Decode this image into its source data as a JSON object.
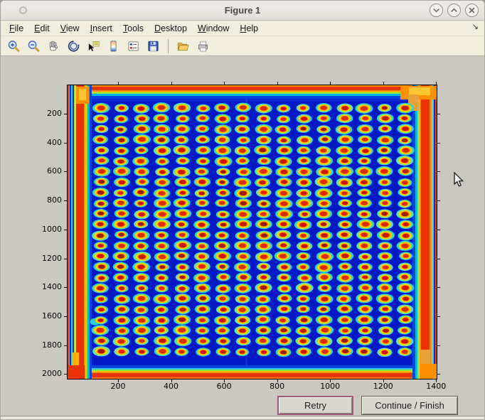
{
  "window": {
    "title": "Figure 1",
    "controls": {
      "minimize": "chevron-down",
      "maximize": "chevron-up",
      "close": "x"
    }
  },
  "menu": {
    "items": [
      {
        "m": "F",
        "rest": "ile"
      },
      {
        "m": "E",
        "rest": "dit"
      },
      {
        "m": "V",
        "rest": "iew"
      },
      {
        "m": "I",
        "rest": "nsert"
      },
      {
        "m": "T",
        "rest": "ools"
      },
      {
        "m": "D",
        "rest": "esktop"
      },
      {
        "m": "W",
        "rest": "indow"
      },
      {
        "m": "H",
        "rest": "elp"
      }
    ],
    "overflow_glyph": "↘"
  },
  "toolbar": {
    "icons": [
      "zoom-in",
      "zoom-out",
      "pan",
      "rotate-3d",
      "data-cursor",
      "insert-colorbar",
      "insert-legend",
      "save-figure",
      "open-file",
      "print-figure"
    ]
  },
  "plot": {
    "x_ticks": [
      200,
      400,
      600,
      800,
      1000,
      1200,
      1400
    ],
    "y_ticks": [
      200,
      400,
      600,
      800,
      1000,
      1200,
      1400,
      1600,
      1800,
      2000
    ],
    "image": {
      "description": "jet-colormap thermal image of a 384-well microplate with hot edges",
      "grid_cols": 16,
      "grid_rows": 24,
      "colors": {
        "background": "#0119c6",
        "halo_cyan": "#29d2e2",
        "ring_green": "#8ee03c",
        "ring_yellow": "#ffd800",
        "ring_orange": "#ff8400",
        "core_red": "#d01400",
        "edge_red": "#ea3305",
        "edge_orange": "#ff9000",
        "edge_tan": "#e8a43c"
      }
    }
  },
  "buttons": {
    "retry": "Retry",
    "continue": "Continue / Finish"
  }
}
